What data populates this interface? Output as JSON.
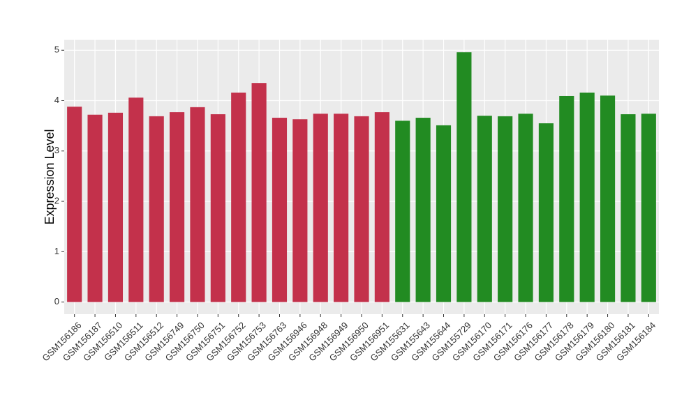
{
  "chart_data": {
    "type": "bar",
    "y_label": "Expression Level",
    "categories": [
      "GSM156186",
      "GSM156187",
      "GSM156510",
      "GSM156511",
      "GSM156512",
      "GSM156749",
      "GSM156750",
      "GSM156751",
      "GSM156752",
      "GSM156753",
      "GSM156763",
      "GSM156946",
      "GSM156948",
      "GSM156949",
      "GSM156950",
      "GSM156951",
      "GSM155631",
      "GSM155643",
      "GSM155644",
      "GSM155729",
      "GSM156170",
      "GSM156171",
      "GSM156176",
      "GSM156177",
      "GSM156178",
      "GSM156179",
      "GSM156180",
      "GSM156181",
      "GSM156184"
    ],
    "values": [
      3.88,
      3.72,
      3.76,
      4.06,
      3.69,
      3.77,
      3.87,
      3.73,
      4.16,
      4.35,
      3.66,
      3.63,
      3.74,
      3.74,
      3.69,
      3.77,
      3.6,
      3.66,
      3.51,
      4.96,
      3.7,
      3.69,
      3.74,
      3.55,
      4.09,
      4.16,
      4.1,
      3.73,
      3.74
    ],
    "colors": [
      "#c3314b",
      "#c3314b",
      "#c3314b",
      "#c3314b",
      "#c3314b",
      "#c3314b",
      "#c3314b",
      "#c3314b",
      "#c3314b",
      "#c3314b",
      "#c3314b",
      "#c3314b",
      "#c3314b",
      "#c3314b",
      "#c3314b",
      "#c3314b",
      "#228b22",
      "#228b22",
      "#228b22",
      "#228b22",
      "#228b22",
      "#228b22",
      "#228b22",
      "#228b22",
      "#228b22",
      "#228b22",
      "#228b22",
      "#228b22",
      "#228b22"
    ],
    "ylim": [
      -0.24,
      5.21
    ],
    "yticks": [
      0,
      1,
      2,
      3,
      4,
      5
    ],
    "grid": true
  }
}
